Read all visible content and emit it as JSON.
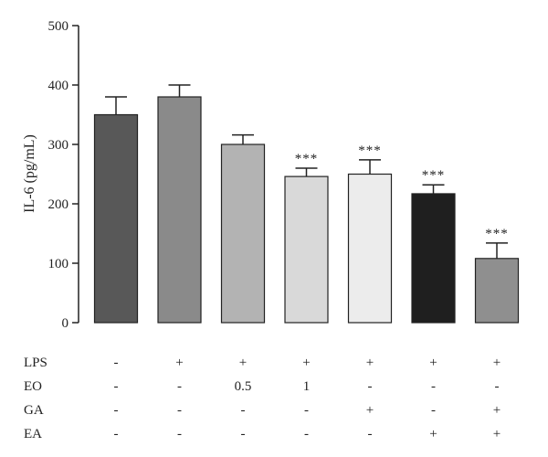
{
  "chart_data": {
    "type": "bar",
    "ylabel": "IL-6 (pg/mL)",
    "ylim": [
      0,
      500
    ],
    "yticks": [
      "0",
      "100",
      "200",
      "300",
      "400",
      "500"
    ],
    "grid": false,
    "bars": [
      {
        "value": 350,
        "error": 30,
        "color": "#585858",
        "annotation": ""
      },
      {
        "value": 380,
        "error": 20,
        "color": "#8a8a8a",
        "annotation": ""
      },
      {
        "value": 300,
        "error": 16,
        "color": "#b3b3b3",
        "annotation": ""
      },
      {
        "value": 246,
        "error": 14,
        "color": "#d9d9d9",
        "annotation": "***"
      },
      {
        "value": 250,
        "error": 24,
        "color": "#ececec",
        "annotation": "***"
      },
      {
        "value": 217,
        "error": 15,
        "color": "#1f1f1f",
        "annotation": "***"
      },
      {
        "value": 108,
        "error": 26,
        "color": "#8f8f8f",
        "annotation": "***"
      }
    ],
    "conditions": [
      {
        "label": "LPS",
        "values": [
          "-",
          "+",
          "+",
          "+",
          "+",
          "+",
          "+"
        ]
      },
      {
        "label": "EO",
        "values": [
          "-",
          "-",
          "0.5",
          "1",
          "-",
          "-",
          "-"
        ]
      },
      {
        "label": "GA",
        "values": [
          "-",
          "-",
          "-",
          "-",
          "+",
          "-",
          "+"
        ]
      },
      {
        "label": "EA",
        "values": [
          "-",
          "-",
          "-",
          "-",
          "-",
          "+",
          "+"
        ]
      }
    ]
  }
}
